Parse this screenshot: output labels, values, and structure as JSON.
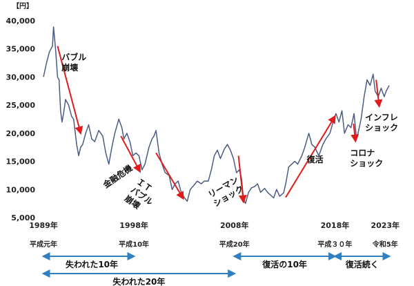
{
  "chart_data": {
    "type": "line",
    "y_unit": "【円】",
    "ylim": [
      5000,
      40000
    ],
    "yticks": [
      5000,
      10000,
      15000,
      20000,
      25000,
      30000,
      35000,
      40000
    ],
    "xlim": [
      1989.0,
      2023.6
    ],
    "x_ticks": [
      {
        "year": 1989,
        "label": "1989年",
        "era": "平成元年"
      },
      {
        "year": 1998,
        "label": "1998年",
        "era": "平成10年"
      },
      {
        "year": 2008,
        "label": "2008年",
        "era": "平成20年"
      },
      {
        "year": 2018,
        "label": "2018年",
        "era": "平成３０年"
      },
      {
        "year": 2023,
        "label": "2023年",
        "era": "令和5年"
      }
    ],
    "grid": false,
    "series": [
      {
        "color": "#4a5a82",
        "points": [
          [
            1989.0,
            30000
          ],
          [
            1989.3,
            32500
          ],
          [
            1989.6,
            34500
          ],
          [
            1989.9,
            35500
          ],
          [
            1990.0,
            38900
          ],
          [
            1990.2,
            35000
          ],
          [
            1990.4,
            30000
          ],
          [
            1990.55,
            29500
          ],
          [
            1990.7,
            24000
          ],
          [
            1990.85,
            22000
          ],
          [
            1991.0,
            23500
          ],
          [
            1991.2,
            26000
          ],
          [
            1991.5,
            25000
          ],
          [
            1991.8,
            23000
          ],
          [
            1992.0,
            22500
          ],
          [
            1992.3,
            18000
          ],
          [
            1992.5,
            16000
          ],
          [
            1992.7,
            17500
          ],
          [
            1992.9,
            18000
          ],
          [
            1993.2,
            20000
          ],
          [
            1993.5,
            21500
          ],
          [
            1993.8,
            19000
          ],
          [
            1994.1,
            18500
          ],
          [
            1994.5,
            20500
          ],
          [
            1994.9,
            19500
          ],
          [
            1995.2,
            16500
          ],
          [
            1995.5,
            14500
          ],
          [
            1995.8,
            17500
          ],
          [
            1996.1,
            20000
          ],
          [
            1996.5,
            22500
          ],
          [
            1996.8,
            21000
          ],
          [
            1997.0,
            19000
          ],
          [
            1997.3,
            20000
          ],
          [
            1997.6,
            18500
          ],
          [
            1997.9,
            16000
          ],
          [
            1998.2,
            16500
          ],
          [
            1998.5,
            16000
          ],
          [
            1998.8,
            13500
          ],
          [
            1999.1,
            14500
          ],
          [
            1999.5,
            17500
          ],
          [
            1999.8,
            19000
          ],
          [
            2000.0,
            19500
          ],
          [
            2000.2,
            20500
          ],
          [
            2000.5,
            16500
          ],
          [
            2000.8,
            14500
          ],
          [
            2001.1,
            13000
          ],
          [
            2001.5,
            12500
          ],
          [
            2001.8,
            10000
          ],
          [
            2002.1,
            11000
          ],
          [
            2002.4,
            11500
          ],
          [
            2002.7,
            9500
          ],
          [
            2003.0,
            8600
          ],
          [
            2003.3,
            7900
          ],
          [
            2003.6,
            10000
          ],
          [
            2003.9,
            10600
          ],
          [
            2004.3,
            11500
          ],
          [
            2004.7,
            11000
          ],
          [
            2005.0,
            11500
          ],
          [
            2005.4,
            11500
          ],
          [
            2005.7,
            13500
          ],
          [
            2006.0,
            16000
          ],
          [
            2006.3,
            17000
          ],
          [
            2006.6,
            15500
          ],
          [
            2007.0,
            17200
          ],
          [
            2007.3,
            18000
          ],
          [
            2007.6,
            17000
          ],
          [
            2007.9,
            15500
          ],
          [
            2008.2,
            13000
          ],
          [
            2008.5,
            13500
          ],
          [
            2008.7,
            12000
          ],
          [
            2008.9,
            8300
          ],
          [
            2009.1,
            7500
          ],
          [
            2009.4,
            9500
          ],
          [
            2009.7,
            10300
          ],
          [
            2010.0,
            10500
          ],
          [
            2010.3,
            11000
          ],
          [
            2010.6,
            9500
          ],
          [
            2011.0,
            10200
          ],
          [
            2011.3,
            9500
          ],
          [
            2011.6,
            9000
          ],
          [
            2011.9,
            8500
          ],
          [
            2012.2,
            10000
          ],
          [
            2012.5,
            8800
          ],
          [
            2012.9,
            9400
          ],
          [
            2013.1,
            11000
          ],
          [
            2013.4,
            14000
          ],
          [
            2013.7,
            14500
          ],
          [
            2014.0,
            15000
          ],
          [
            2014.3,
            14500
          ],
          [
            2014.7,
            16000
          ],
          [
            2015.0,
            17500
          ],
          [
            2015.4,
            20000
          ],
          [
            2015.7,
            18000
          ],
          [
            2016.0,
            17500
          ],
          [
            2016.4,
            16000
          ],
          [
            2016.8,
            18000
          ],
          [
            2017.1,
            19000
          ],
          [
            2017.5,
            20000
          ],
          [
            2017.9,
            22500
          ],
          [
            2018.1,
            23500
          ],
          [
            2018.4,
            22000
          ],
          [
            2018.7,
            24000
          ],
          [
            2018.95,
            20000
          ],
          [
            2019.3,
            21500
          ],
          [
            2019.6,
            21000
          ],
          [
            2019.9,
            23500
          ],
          [
            2020.15,
            19000
          ],
          [
            2020.3,
            20000
          ],
          [
            2020.6,
            22500
          ],
          [
            2020.9,
            26500
          ],
          [
            2021.2,
            29500
          ],
          [
            2021.5,
            28500
          ],
          [
            2021.8,
            30500
          ],
          [
            2022.0,
            27500
          ],
          [
            2022.3,
            26500
          ],
          [
            2022.6,
            28000
          ],
          [
            2022.9,
            26500
          ],
          [
            2023.1,
            27500
          ],
          [
            2023.4,
            28500
          ]
        ]
      }
    ],
    "arrows": [
      {
        "from": [
          1990.4,
          35500
        ],
        "to": [
          1992.7,
          20000
        ]
      },
      {
        "from": [
          1996.7,
          19500
        ],
        "to": [
          1998.6,
          13200
        ]
      },
      {
        "from": [
          2000.2,
          16500
        ],
        "to": [
          2002.9,
          8400
        ]
      },
      {
        "from": [
          2008.4,
          16000
        ],
        "to": [
          2008.9,
          7800
        ]
      },
      {
        "from": [
          2013.1,
          8600
        ],
        "to": [
          2018.0,
          23000
        ]
      },
      {
        "from": [
          2019.85,
          21700
        ],
        "to": [
          2020.05,
          18600
        ]
      },
      {
        "from": [
          2022.1,
          29500
        ],
        "to": [
          2022.4,
          24800
        ]
      }
    ],
    "annotations": [
      {
        "lines": [
          "バブル",
          "崩壊"
        ],
        "x": 1990.8,
        "y": 33000
      },
      {
        "lines": [
          "金融危機"
        ],
        "x": 1995.2,
        "y": 10200,
        "rotate": -35
      },
      {
        "lines": [
          "ＩＴ",
          "バブル",
          "崩壊"
        ],
        "x": 1998.2,
        "y": 11200,
        "rotate": 35
      },
      {
        "lines": [
          "リーマン",
          "ショック"
        ],
        "x": 2005.6,
        "y": 8500,
        "rotate": -30
      },
      {
        "lines": [
          "復活"
        ],
        "x": 2015.2,
        "y": 14800
      },
      {
        "lines": [
          "コロナ",
          "ショック"
        ],
        "x": 2019.5,
        "y": 16000
      },
      {
        "lines": [
          "インフレ",
          "ショック"
        ],
        "x": 2021.0,
        "y": 22300
      }
    ],
    "bands": [
      {
        "label": "失われた10年",
        "start": 1989,
        "end": 1998
      },
      {
        "label": "失われた20年",
        "start": 1989,
        "end": 2008
      },
      {
        "label": "復活の10年",
        "start": 2008,
        "end": 2018
      },
      {
        "label": "復活続く",
        "start": 2018,
        "end": 2023.4
      }
    ],
    "colors": {
      "line": "#4a5a82",
      "arrow": "#e01b1b",
      "band": "#2f7fc1"
    }
  }
}
